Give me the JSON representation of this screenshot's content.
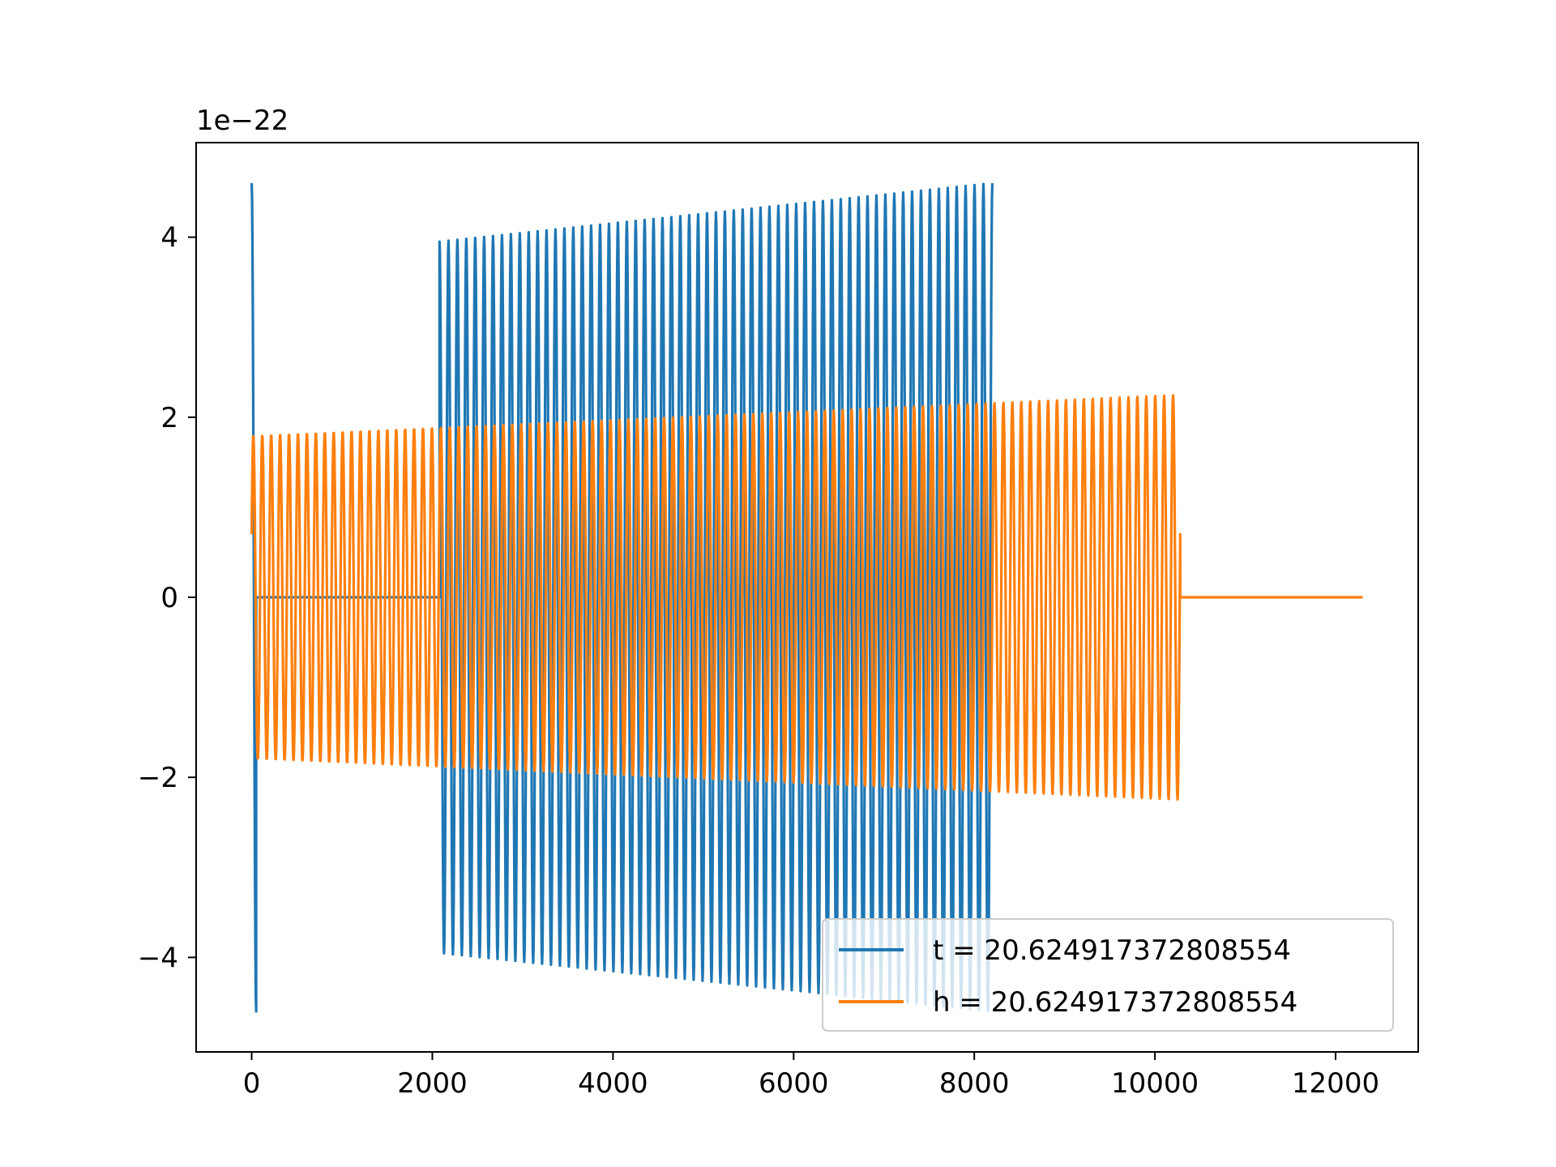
{
  "chart_data": {
    "type": "line",
    "title": "",
    "xlabel": "",
    "ylabel": "",
    "y_offset_text": "1e−22",
    "y_scale": 1e-22,
    "xlim": [
      -615,
      12915
    ],
    "ylim": [
      -5.05,
      5.05
    ],
    "x_ticks": [
      0,
      2000,
      4000,
      6000,
      8000,
      10000,
      12000
    ],
    "x_tick_labels": [
      "0",
      "2000",
      "4000",
      "6000",
      "8000",
      "10000",
      "12000"
    ],
    "y_ticks": [
      -4,
      -2,
      0,
      2,
      4
    ],
    "y_tick_labels": [
      "−4",
      "−2",
      "0",
      "2",
      "4"
    ],
    "grid": false,
    "legend_position": "lower right",
    "series": [
      {
        "name": "t = 20.624917372808554",
        "color": "#1f77b4",
        "segments": [
          {
            "x_start": 0,
            "x_end": 50,
            "amplitude_start": 4.6,
            "amplitude_end": 4.6,
            "cycles": 0.5
          },
          {
            "x_start": 50,
            "x_end": 2080,
            "amplitude_start": 0,
            "amplitude_end": 0,
            "cycles": 0
          },
          {
            "x_start": 2080,
            "x_end": 8200,
            "amplitude_start": 3.95,
            "amplitude_end": 4.6,
            "cycles": 62
          }
        ]
      },
      {
        "name": "h = 20.624917372808554",
        "color": "#ff7f0e",
        "segments": [
          {
            "x_start": 0,
            "x_end": 10280,
            "amplitude_start": 1.8,
            "amplitude_end": 2.25,
            "cycles": 104,
            "start_value": 0.7
          },
          {
            "x_start": 10280,
            "x_end": 12300,
            "amplitude_start": 0,
            "amplitude_end": 0,
            "cycles": 0
          }
        ]
      }
    ]
  }
}
